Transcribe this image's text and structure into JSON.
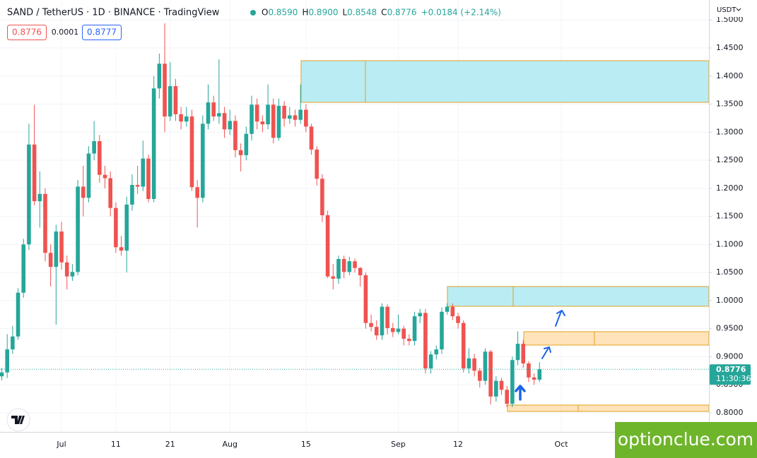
{
  "chart_data": {
    "type": "candlestick",
    "title": "SAND / TetherUS · 1D · BINANCE · TradingView",
    "ohlc": [
      {
        "label": "O",
        "value": "0.8590"
      },
      {
        "label": "H",
        "value": "0.8900"
      },
      {
        "label": "L",
        "value": "0.8548"
      },
      {
        "label": "C",
        "value": "0.8776"
      }
    ],
    "change": "+0.0184 (+2.14%)",
    "badges": [
      "0.8776",
      "0.0001",
      "0.8777"
    ],
    "currency": "USDT",
    "countdown": "11:30:36",
    "watermark": "optionclue.com",
    "up_color": "#26a69a",
    "down_color": "#ef5350",
    "categories": [
      null,
      null,
      null,
      null,
      null,
      null,
      null,
      null,
      null,
      null,
      null,
      "Jul",
      null,
      null,
      null,
      null,
      null,
      null,
      null,
      null,
      null,
      "11",
      null,
      null,
      null,
      null,
      null,
      null,
      null,
      null,
      null,
      "21",
      null,
      null,
      null,
      null,
      null,
      null,
      null,
      null,
      null,
      null,
      "Aug",
      null,
      null,
      null,
      null,
      null,
      null,
      null,
      null,
      null,
      null,
      null,
      null,
      null,
      "15",
      null,
      null,
      null,
      null,
      null,
      null,
      null,
      null,
      null,
      null,
      null,
      null,
      null,
      null,
      null,
      null,
      "Sep",
      null,
      null,
      null,
      null,
      null,
      null,
      null,
      null,
      null,
      null,
      "12",
      null,
      null,
      null,
      null,
      null,
      null,
      null,
      null,
      null,
      null,
      null,
      null,
      null,
      null,
      null,
      null,
      null,
      null,
      "Oct"
    ],
    "open": [
      0.865,
      0.872,
      0.913,
      0.936,
      1.014,
      1.1,
      1.278,
      1.177,
      1.19,
      1.085,
      1.06,
      1.123,
      1.068,
      1.043,
      1.051,
      1.203,
      1.183,
      1.262,
      1.284,
      1.224,
      1.218,
      1.165,
      1.095,
      1.089,
      1.171,
      1.206,
      1.203,
      1.253,
      1.181,
      1.378,
      1.422,
      1.328,
      1.382,
      1.332,
      1.319,
      1.328,
      1.202,
      1.183,
      1.315,
      1.353,
      1.328,
      1.334,
      1.305,
      1.32,
      1.268,
      1.259,
      1.297,
      1.349,
      1.319,
      1.314,
      1.349,
      1.29,
      1.347,
      1.324,
      1.33,
      1.322,
      1.34,
      1.31,
      1.269,
      1.217,
      1.152,
      1.043,
      1.039,
      1.074,
      1.051,
      1.07,
      1.058,
      1.045,
      0.96,
      0.953,
      0.938,
      0.989,
      0.951,
      0.944,
      0.95,
      0.932,
      0.928,
      0.972,
      0.978,
      0.879,
      0.904,
      0.913,
      0.98,
      0.989,
      0.972,
      0.96,
      0.879,
      0.897,
      0.875,
      0.857,
      0.909,
      0.829,
      0.857,
      0.841,
      0.816,
      0.894,
      0.923,
      0.888,
      0.863,
      0.859,
      null,
      null,
      null,
      null
    ],
    "high": [
      0.88,
      0.94,
      0.955,
      1.022,
      1.11,
      1.315,
      1.349,
      1.23,
      1.2,
      1.1,
      1.135,
      1.14,
      1.08,
      1.065,
      1.215,
      1.24,
      1.275,
      1.32,
      1.295,
      1.24,
      1.23,
      1.175,
      1.115,
      1.185,
      1.225,
      1.24,
      1.285,
      1.26,
      1.4,
      1.44,
      1.494,
      1.425,
      1.395,
      1.345,
      1.345,
      1.34,
      1.215,
      1.33,
      1.385,
      1.365,
      1.43,
      1.345,
      1.34,
      1.33,
      1.28,
      1.31,
      1.365,
      1.36,
      1.33,
      1.385,
      1.36,
      1.36,
      1.355,
      1.345,
      1.34,
      1.385,
      1.35,
      1.315,
      1.275,
      1.225,
      1.16,
      1.065,
      1.08,
      1.08,
      1.078,
      1.075,
      1.06,
      1.05,
      0.975,
      0.965,
      0.995,
      0.993,
      0.96,
      0.975,
      0.955,
      0.94,
      0.98,
      0.985,
      0.985,
      0.91,
      0.92,
      0.988,
      0.995,
      0.995,
      0.978,
      0.965,
      0.915,
      0.905,
      0.88,
      0.915,
      0.912,
      0.865,
      0.862,
      0.848,
      0.9,
      0.945,
      0.93,
      0.892,
      0.87,
      0.89,
      null,
      null,
      null,
      null
    ],
    "low": [
      0.858,
      0.862,
      0.905,
      0.93,
      1.005,
      1.09,
      1.17,
      1.13,
      1.07,
      1.025,
      0.957,
      1.055,
      1.02,
      1.035,
      1.045,
      1.15,
      1.175,
      1.25,
      1.21,
      1.2,
      1.15,
      1.085,
      1.08,
      1.05,
      1.16,
      1.19,
      1.195,
      1.175,
      1.175,
      1.36,
      1.3,
      1.32,
      1.32,
      1.305,
      1.31,
      1.195,
      1.13,
      1.175,
      1.305,
      1.32,
      1.315,
      1.29,
      1.295,
      1.255,
      1.23,
      1.25,
      1.285,
      1.305,
      1.3,
      1.305,
      1.28,
      1.285,
      1.31,
      1.315,
      1.31,
      1.315,
      1.3,
      1.26,
      1.205,
      1.14,
      1.04,
      1.02,
      1.03,
      1.04,
      1.045,
      1.05,
      1.025,
      0.95,
      0.945,
      0.93,
      0.93,
      0.94,
      0.935,
      0.94,
      0.92,
      0.92,
      0.92,
      0.96,
      0.87,
      0.87,
      0.895,
      0.905,
      0.975,
      0.965,
      0.95,
      0.872,
      0.87,
      0.865,
      0.845,
      0.85,
      0.815,
      0.82,
      0.832,
      0.81,
      0.81,
      0.885,
      0.88,
      0.855,
      0.85,
      0.8548,
      null,
      null,
      null,
      null
    ],
    "close": [
      0.872,
      0.913,
      0.936,
      1.014,
      1.1,
      1.278,
      1.177,
      1.19,
      1.085,
      1.06,
      1.123,
      1.068,
      1.043,
      1.051,
      1.203,
      1.183,
      1.262,
      1.284,
      1.224,
      1.218,
      1.165,
      1.095,
      1.089,
      1.171,
      1.206,
      1.203,
      1.253,
      1.181,
      1.378,
      1.422,
      1.328,
      1.382,
      1.332,
      1.319,
      1.328,
      1.202,
      1.183,
      1.315,
      1.353,
      1.328,
      1.334,
      1.305,
      1.32,
      1.268,
      1.259,
      1.297,
      1.349,
      1.319,
      1.314,
      1.349,
      1.29,
      1.347,
      1.324,
      1.33,
      1.322,
      1.34,
      1.31,
      1.269,
      1.217,
      1.152,
      1.043,
      1.039,
      1.074,
      1.051,
      1.07,
      1.058,
      1.045,
      0.96,
      0.953,
      0.938,
      0.989,
      0.951,
      0.944,
      0.95,
      0.932,
      0.928,
      0.972,
      0.978,
      0.879,
      0.904,
      0.913,
      0.98,
      0.989,
      0.972,
      0.96,
      0.879,
      0.897,
      0.875,
      0.857,
      0.909,
      0.829,
      0.857,
      0.841,
      0.816,
      0.894,
      0.923,
      0.888,
      0.863,
      0.859,
      0.8776,
      null,
      null,
      null,
      null
    ],
    "ylim": [
      0.766,
      1.5355
    ],
    "yticks": [
      {
        "value": 0.8,
        "label": "0.8000"
      },
      {
        "value": 0.85,
        "label": "0.8500"
      },
      {
        "value": 0.9,
        "label": "0.9000"
      },
      {
        "value": 0.95,
        "label": "0.9500"
      },
      {
        "value": 1.0,
        "label": "1.0000"
      },
      {
        "value": 1.05,
        "label": "1.0500"
      },
      {
        "value": 1.1,
        "label": "1.1000"
      },
      {
        "value": 1.15,
        "label": "1.1500"
      },
      {
        "value": 1.2,
        "label": "1.2000"
      },
      {
        "value": 1.25,
        "label": "1.2500"
      },
      {
        "value": 1.3,
        "label": "1.3000"
      },
      {
        "value": 1.35,
        "label": "1.3500"
      },
      {
        "value": 1.4,
        "label": "1.4000"
      },
      {
        "value": 1.45,
        "label": "1.4500"
      },
      {
        "value": 1.5,
        "label": "1.5000"
      }
    ],
    "grid": true
  }
}
